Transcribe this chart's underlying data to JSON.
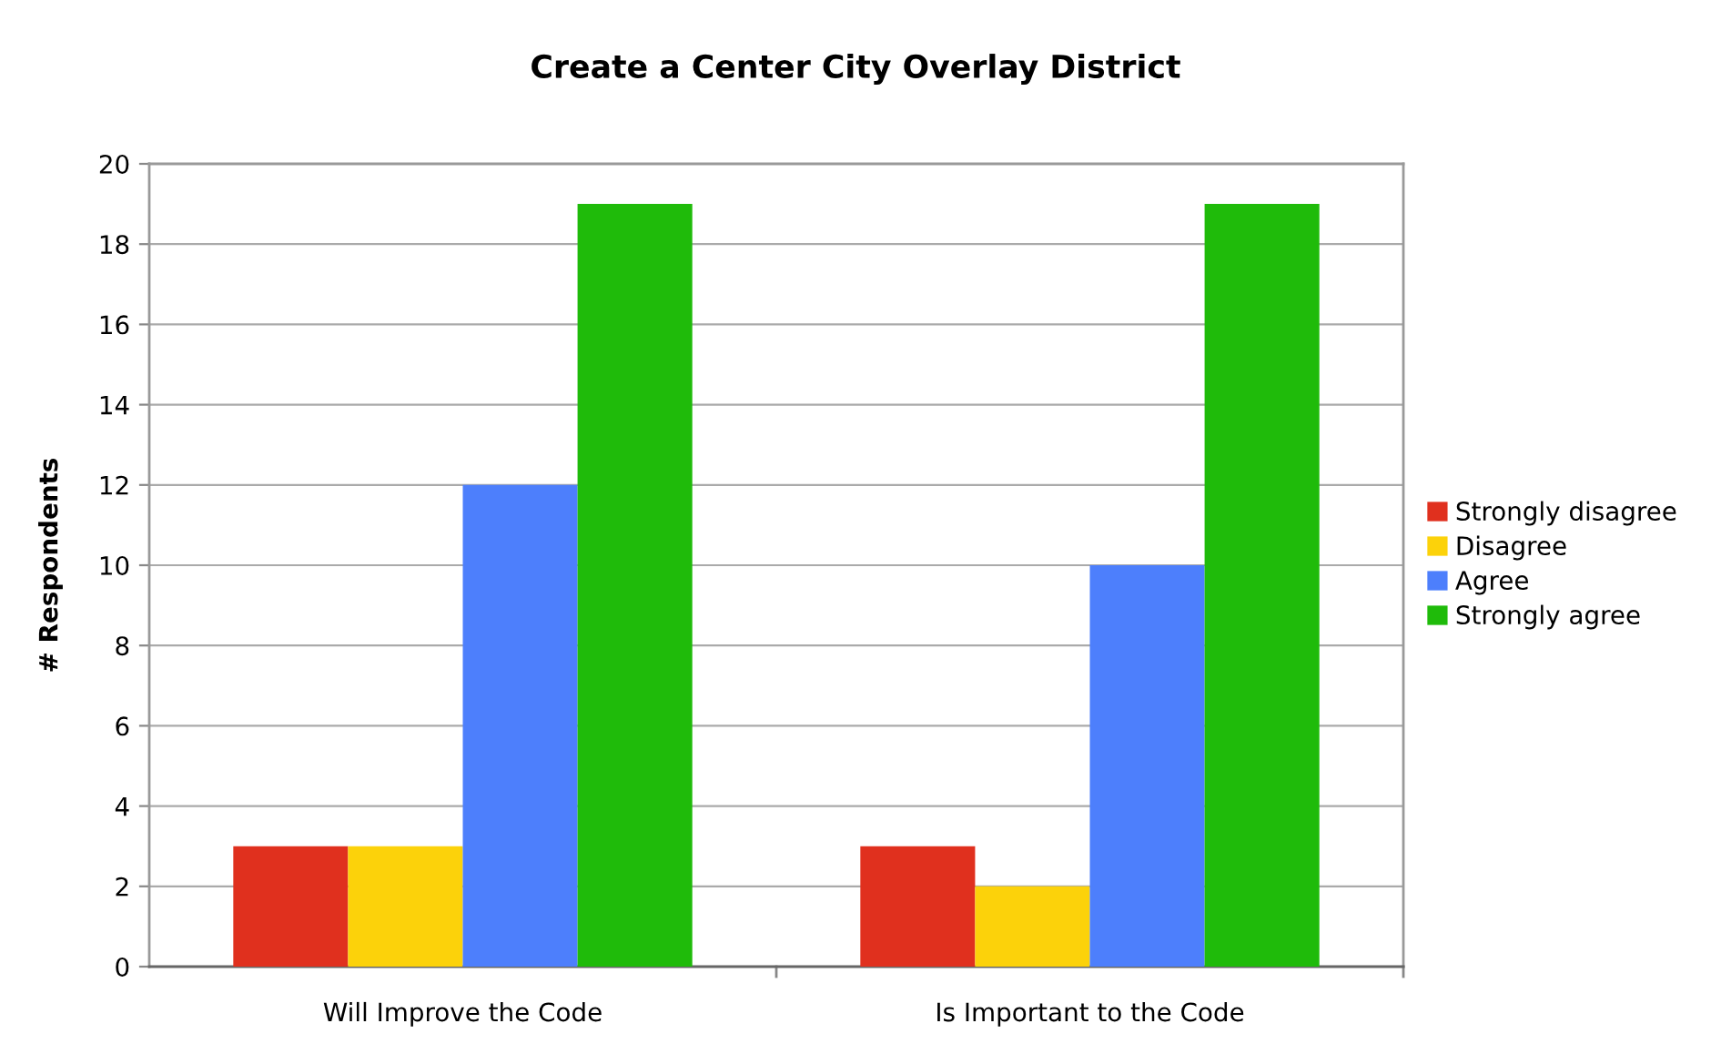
{
  "chart_data": {
    "type": "bar",
    "title": "Create a Center City Overlay District",
    "ylabel": "# Respondents",
    "categories": [
      "Will Improve the Code",
      "Is Important to the Code"
    ],
    "series": [
      {
        "name": "Strongly disagree",
        "color": "#e0301e",
        "values": [
          3,
          3
        ]
      },
      {
        "name": "Disagree",
        "color": "#fcd20a",
        "values": [
          3,
          2
        ]
      },
      {
        "name": "Agree",
        "color": "#4d7ffc",
        "values": [
          12,
          10
        ]
      },
      {
        "name": "Strongly agree",
        "color": "#1fbb0a",
        "values": [
          19,
          19
        ]
      }
    ],
    "ylim": [
      0,
      20
    ],
    "yticks": [
      0,
      2,
      4,
      6,
      8,
      10,
      12,
      14,
      16,
      18,
      20
    ],
    "grid": "y",
    "legend": "right"
  }
}
